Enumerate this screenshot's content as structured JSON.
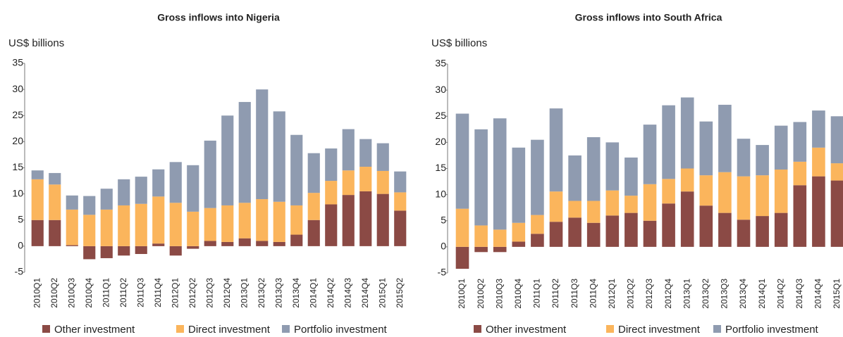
{
  "chart_data": [
    {
      "type": "bar",
      "stacked": true,
      "title": "Gross inflows into Nigeria",
      "y_label": "US$ billions",
      "categories": [
        "2010Q1",
        "2010Q2",
        "2010Q3",
        "2010Q4",
        "2011Q1",
        "2011Q2",
        "2011Q3",
        "2011Q4",
        "2012Q1",
        "2012Q2",
        "2012Q3",
        "2012Q4",
        "2013Q1",
        "2013Q2",
        "2013Q3",
        "2013Q4",
        "2014Q1",
        "2014Q2",
        "2014Q3",
        "2014Q4",
        "2015Q1",
        "2015Q2"
      ],
      "series": [
        {
          "name": "Other investment",
          "color": "#8b4a45",
          "values": [
            5,
            5,
            0.2,
            -2.5,
            -2.3,
            -1.8,
            -1.5,
            0.5,
            -1.8,
            -0.5,
            1,
            0.8,
            1.5,
            1,
            0.8,
            2.2,
            5,
            8,
            9.8,
            10.5,
            10,
            6.8
          ]
        },
        {
          "name": "Direct investment",
          "color": "#fbb55c",
          "values": [
            7.8,
            6.8,
            6.8,
            6,
            7,
            7.8,
            8.1,
            9,
            8.3,
            6.6,
            6.3,
            7,
            6.8,
            8,
            7.7,
            5.6,
            5.2,
            4.5,
            4.7,
            4.7,
            4.4,
            3.5
          ]
        },
        {
          "name": "Portfolio investment",
          "color": "#8f9bb0",
          "values": [
            1.7,
            2.2,
            2.7,
            3.6,
            4,
            5,
            5.2,
            5.2,
            7.8,
            8.9,
            12.9,
            17.2,
            19.3,
            21,
            17.3,
            13.5,
            7.6,
            6.2,
            7.9,
            5.3,
            5.3,
            4
          ]
        }
      ],
      "ylim": [
        -5,
        35
      ],
      "yticks": [
        -5,
        0,
        5,
        10,
        15,
        20,
        25,
        30,
        35
      ]
    },
    {
      "type": "bar",
      "stacked": true,
      "title": "Gross inflows into South Africa",
      "y_label": "US$ billions",
      "categories": [
        "2010Q1",
        "2010Q2",
        "2010Q3",
        "2010Q4",
        "2011Q1",
        "2011Q2",
        "2011Q3",
        "2011Q4",
        "2012Q1",
        "2012Q2",
        "2012Q3",
        "2012Q4",
        "2013Q1",
        "2013Q2",
        "2013Q3",
        "2013Q4",
        "2014Q1",
        "2014Q2",
        "2014Q3",
        "2014Q4",
        "2015Q1"
      ],
      "series": [
        {
          "name": "Other investment",
          "color": "#8b4a45",
          "values": [
            -4.2,
            -1,
            -1,
            1,
            2.5,
            4.8,
            5.6,
            4.6,
            6,
            6.5,
            5,
            8.3,
            10.6,
            7.9,
            6.5,
            5.2,
            5.9,
            6.5,
            11.8,
            13.5,
            12.7
          ]
        },
        {
          "name": "Direct investment",
          "color": "#fbb55c",
          "values": [
            7.3,
            4.1,
            3.3,
            3.6,
            3.6,
            5.8,
            3.2,
            4.2,
            4.8,
            3.3,
            7,
            4.7,
            4.4,
            5.8,
            7.8,
            8.3,
            7.8,
            8.3,
            4.5,
            5.5,
            3.3
          ]
        },
        {
          "name": "Portfolio investment",
          "color": "#8f9bb0",
          "values": [
            18.2,
            18.4,
            21.3,
            14.4,
            14.4,
            15.9,
            8.7,
            12.2,
            9.2,
            7.3,
            11.4,
            14.1,
            13.6,
            10.3,
            12.9,
            7.2,
            5.8,
            8.4,
            7.6,
            7.1,
            9
          ]
        }
      ],
      "ylim": [
        -5,
        35
      ],
      "yticks": [
        -5,
        0,
        5,
        10,
        15,
        20,
        25,
        30,
        35
      ]
    }
  ]
}
